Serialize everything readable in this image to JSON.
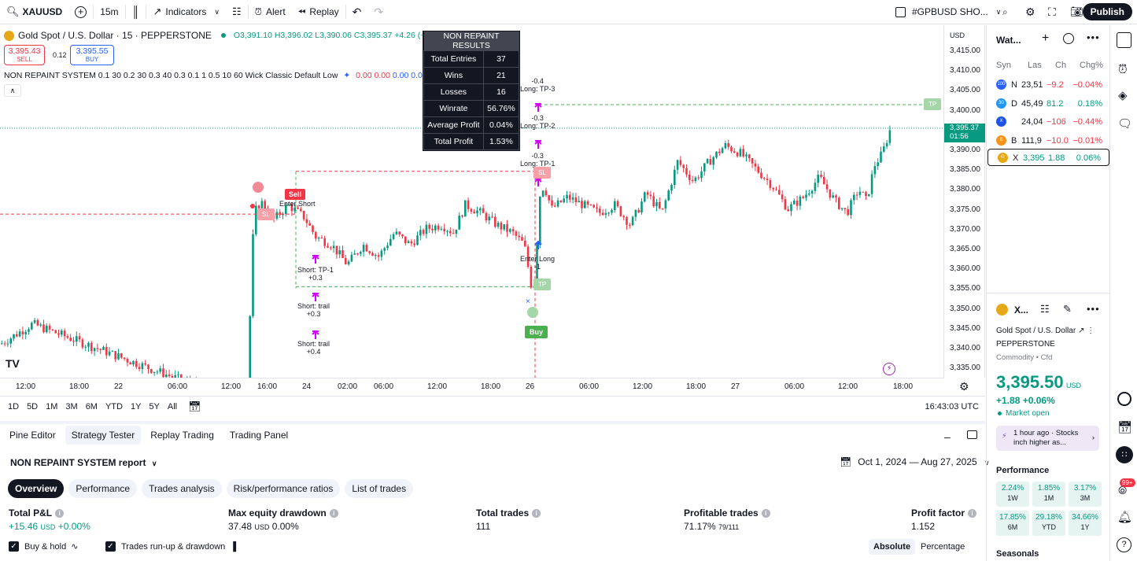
{
  "topbar": {
    "symbol": "XAUUSD",
    "interval": "15m",
    "indicators": "Indicators",
    "alert": "Alert",
    "replay": "Replay",
    "layout_name": "#GPBUSD SHO...",
    "publish": "Publish"
  },
  "legend": {
    "title": "Gold Spot / U.S. Dollar · 15 · PEPPERSTONE",
    "ohlc_o": "O3,391.10",
    "ohlc_h": "H3,396.02",
    "ohlc_l": "L3,390.06",
    "ohlc_c": "C3,395.37",
    "change": "+4.26 (+0.13%)",
    "sell_price": "3,395.43",
    "sell": "SELL",
    "spread": "0.12",
    "buy_price": "3,395.55",
    "buy": "BUY",
    "indicator": "NON REPAINT SYSTEM 0.1 30 0.2 30 0.3 40 0.3 0.1 1 0.5 10 60 Wick Classic Default Low",
    "ind_vals": [
      "0.00",
      "0.00",
      "0.00",
      "0.00"
    ]
  },
  "stats": {
    "title": "NON REPAINT RESULTS",
    "rows": [
      [
        "Total Entries",
        "37"
      ],
      [
        "Wins",
        "21"
      ],
      [
        "Losses",
        "16"
      ],
      [
        "Winrate",
        "56.76%"
      ],
      [
        "Average Profit",
        "0.04%"
      ],
      [
        "Total Profit",
        "1.53%"
      ]
    ]
  },
  "labels": {
    "sell": "Sell",
    "enter_short": "Enter Short",
    "sl": "SL",
    "short_tp1": "Short: TP-1",
    "short_tp1_v": "+0.3",
    "short_trail1": "Short: trail",
    "short_trail1_v": "+0.3",
    "short_trail2": "Short: trail",
    "short_trail2_v": "+0.4",
    "long_tp3_v": "-0.4",
    "long_tp3": "Long: TP-3",
    "long_tp2_v": "-0.3",
    "long_tp2": "Long: TP-2",
    "long_tp1_v": "-0.3",
    "long_tp1": "Long: TP-1",
    "enter_long": "Enter Long",
    "enter_long_v": "-1",
    "tp": "TP",
    "buy": "Buy"
  },
  "price_axis": {
    "currency": "USD",
    "ticks": [
      "3,415.00",
      "3,410.00",
      "3,405.00",
      "3,400.00",
      "3,395.00",
      "3,390.00",
      "3,385.00",
      "3,380.00",
      "3,375.00",
      "3,370.00",
      "3,365.00",
      "3,360.00",
      "3,355.00",
      "3,350.00",
      "3,345.00",
      "3,340.00",
      "3,335.00"
    ],
    "last": "3,395.37",
    "countdown": "01:56"
  },
  "time_axis": [
    "12:00",
    "18:00",
    "22",
    "06:00",
    "12:00",
    "16:00",
    "24",
    "02:00",
    "06:00",
    "12:00",
    "18:00",
    "26",
    "06:00",
    "12:00",
    "18:00",
    "27",
    "06:00",
    "12:00",
    "18:00"
  ],
  "range": {
    "items": [
      "1D",
      "5D",
      "1M",
      "3M",
      "6M",
      "YTD",
      "1Y",
      "5Y",
      "All"
    ],
    "clock": "16:43:03 UTC"
  },
  "panel": {
    "tabs": [
      "Pine Editor",
      "Strategy Tester",
      "Replay Trading",
      "Trading Panel"
    ],
    "report": "NON REPAINT SYSTEM report",
    "dates": "Oct 1, 2024 — Aug 27, 2025",
    "subtabs": [
      "Overview",
      "Performance",
      "Trades analysis",
      "Risk/performance ratios",
      "List of trades"
    ],
    "metrics": [
      {
        "label": "Total P&L",
        "val": "+15.46",
        "unit": "USD",
        "pct": "+0.00%"
      },
      {
        "label": "Max equity drawdown",
        "val": "37.48",
        "unit": "USD",
        "pct": "0.00%"
      },
      {
        "label": "Total trades",
        "val": "111"
      },
      {
        "label": "Profitable trades",
        "val": "71.17%",
        "sub": "79/111"
      },
      {
        "label": "Profit factor",
        "val": "1.152"
      }
    ],
    "buy_hold": "Buy & hold",
    "runup": "Trades run-up & drawdown",
    "absolute": "Absolute",
    "percentage": "Percentage"
  },
  "watchlist": {
    "title": "Wat...",
    "cols": [
      "Syn",
      "Las",
      "Ch",
      "Chg%"
    ],
    "rows": [
      {
        "sym": "N",
        "last": "23,51",
        "ch": "−9.2",
        "pct": "−0.04%",
        "color": "#2962ff",
        "dir": "down",
        "icon": "100"
      },
      {
        "sym": "D",
        "last": "45,49",
        "ch": "81.2",
        "pct": "0.18%",
        "color": "#2196f3",
        "dir": "up",
        "icon": "30"
      },
      {
        "sym": "",
        "last": "24,04",
        "ch": "−106",
        "pct": "−0.44%",
        "color": "#1e53e5",
        "dir": "down",
        "icon": "X"
      },
      {
        "sym": "B",
        "last": "111,9",
        "ch": "−10.0",
        "pct": "−0.01%",
        "color": "#f7931a",
        "dir": "down",
        "icon": "B"
      },
      {
        "sym": "X",
        "last": "3,395",
        "ch": "1.88",
        "pct": "0.06%",
        "color": "#e6a817",
        "dir": "up",
        "icon": "G"
      }
    ]
  },
  "details": {
    "sym": "X...",
    "name": "Gold Spot / U.S. Dollar",
    "exchange": "PEPPERSTONE",
    "type": "Commodity • Cfd",
    "price": "3,395.50",
    "cur": "USD",
    "change": "+1.88",
    "change_pct": "+0.06%",
    "status": "Market open",
    "news": "1 hour ago · Stocks inch higher as...",
    "perf_title": "Performance",
    "perf": [
      [
        "2.24%",
        "1W"
      ],
      [
        "1.85%",
        "1M"
      ],
      [
        "3.17%",
        "3M"
      ],
      [
        "17.85%",
        "6M"
      ],
      [
        "29.18%",
        "YTD"
      ],
      [
        "34.66%",
        "1Y"
      ]
    ],
    "seasonals": "Seasonals"
  },
  "notif": "99+"
}
